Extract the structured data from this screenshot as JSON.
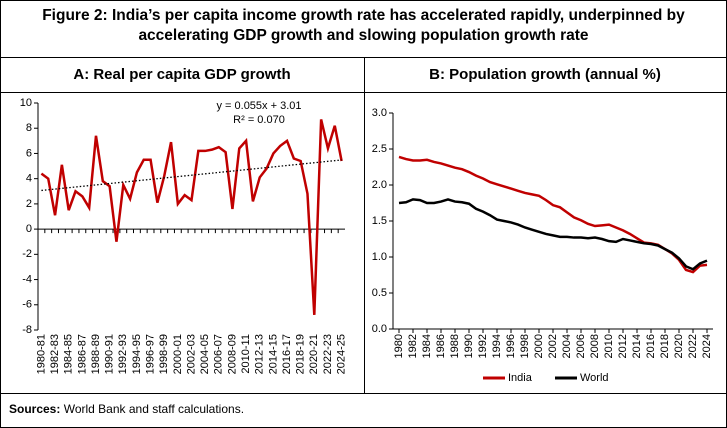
{
  "figure": {
    "title": "Figure 2: India’s per capita income growth rate has accelerated rapidly, underpinned by accelerating GDP growth and slowing population growth rate",
    "sources": {
      "label": "Sources:",
      "text": "World Bank and staff calculations."
    }
  },
  "chart_data": [
    {
      "type": "line",
      "title": "A: Real per capita GDP growth",
      "categories": [
        "1980-81",
        null,
        "1982-83",
        null,
        "1984-85",
        null,
        "1986-87",
        null,
        "1988-89",
        null,
        "1990-91",
        null,
        "1992-93",
        null,
        "1994-95",
        null,
        "1996-97",
        null,
        "1998-99",
        null,
        "2000-01",
        null,
        "2002-03",
        null,
        "2004-05",
        null,
        "2006-07",
        null,
        "2008-09",
        null,
        "2010-11",
        null,
        "2012-13",
        null,
        "2014-15",
        null,
        "2016-17",
        null,
        "2018-19",
        null,
        "2020-21",
        null,
        "2022-23",
        null,
        "2024-25"
      ],
      "values": [
        4.4,
        4.0,
        1.1,
        5.1,
        1.5,
        3.0,
        2.6,
        1.7,
        7.4,
        3.8,
        3.4,
        -1.0,
        3.5,
        2.4,
        4.5,
        5.5,
        5.5,
        2.1,
        4.2,
        6.9,
        2.0,
        2.7,
        2.3,
        6.2,
        6.2,
        6.3,
        6.5,
        6.1,
        1.6,
        6.4,
        7.0,
        2.2,
        4.1,
        4.8,
        6.0,
        6.6,
        7.0,
        5.6,
        5.4,
        2.8,
        -6.8,
        8.7,
        6.4,
        8.2,
        5.4
      ],
      "color": "#c00000",
      "trendline": {
        "slope": 0.055,
        "intercept": 3.01,
        "color": "#000000"
      },
      "annotations": [
        "y = 0.055x + 3.01",
        "R² = 0.070"
      ],
      "ylim": [
        -8,
        10
      ],
      "yticks": [
        -8,
        -6,
        -4,
        -2,
        0,
        2,
        4,
        6,
        8,
        10
      ],
      "grid": false
    },
    {
      "type": "line",
      "title": "B: Population growth (annual %)",
      "x": [
        1980,
        1981,
        1982,
        1983,
        1984,
        1985,
        1986,
        1987,
        1988,
        1989,
        1990,
        1991,
        1992,
        1993,
        1994,
        1995,
        1996,
        1997,
        1998,
        1999,
        2000,
        2001,
        2002,
        2003,
        2004,
        2005,
        2006,
        2007,
        2008,
        2009,
        2010,
        2011,
        2012,
        2013,
        2014,
        2015,
        2016,
        2017,
        2018,
        2019,
        2020,
        2021,
        2022,
        2023,
        2024
      ],
      "series": [
        {
          "name": "India",
          "color": "#c00000",
          "values": [
            2.39,
            2.36,
            2.34,
            2.34,
            2.35,
            2.32,
            2.3,
            2.27,
            2.24,
            2.22,
            2.18,
            2.13,
            2.09,
            2.04,
            2.01,
            1.98,
            1.95,
            1.92,
            1.89,
            1.87,
            1.85,
            1.79,
            1.72,
            1.69,
            1.62,
            1.55,
            1.51,
            1.46,
            1.43,
            1.44,
            1.45,
            1.41,
            1.37,
            1.32,
            1.26,
            1.2,
            1.19,
            1.17,
            1.11,
            1.05,
            0.96,
            0.82,
            0.79,
            0.88,
            0.89
          ]
        },
        {
          "name": "World",
          "color": "#000000",
          "values": [
            1.75,
            1.76,
            1.8,
            1.79,
            1.75,
            1.75,
            1.77,
            1.8,
            1.77,
            1.76,
            1.74,
            1.67,
            1.63,
            1.58,
            1.52,
            1.5,
            1.48,
            1.45,
            1.41,
            1.38,
            1.35,
            1.32,
            1.3,
            1.28,
            1.28,
            1.27,
            1.27,
            1.26,
            1.27,
            1.25,
            1.22,
            1.21,
            1.25,
            1.23,
            1.21,
            1.19,
            1.18,
            1.16,
            1.11,
            1.06,
            0.98,
            0.87,
            0.83,
            0.91,
            0.95
          ]
        }
      ],
      "xlim": [
        1980,
        2024
      ],
      "xticks": [
        1980,
        1982,
        1984,
        1986,
        1988,
        1990,
        1992,
        1994,
        1996,
        1998,
        2000,
        2002,
        2004,
        2006,
        2008,
        2010,
        2012,
        2014,
        2016,
        2018,
        2020,
        2022,
        2024
      ],
      "ylim": [
        0,
        3
      ],
      "yticks": [
        {
          "value": 0,
          "label": "0.0"
        },
        {
          "value": 0.5,
          "label": "0.5"
        },
        {
          "value": 1,
          "label": "1.0"
        },
        {
          "value": 1.5,
          "label": "1.5"
        },
        {
          "value": 2,
          "label": "2.0"
        },
        {
          "value": 2.5,
          "label": "2.5"
        },
        {
          "value": 3,
          "label": "3.0"
        }
      ],
      "grid": false,
      "legend": "bottom"
    }
  ]
}
